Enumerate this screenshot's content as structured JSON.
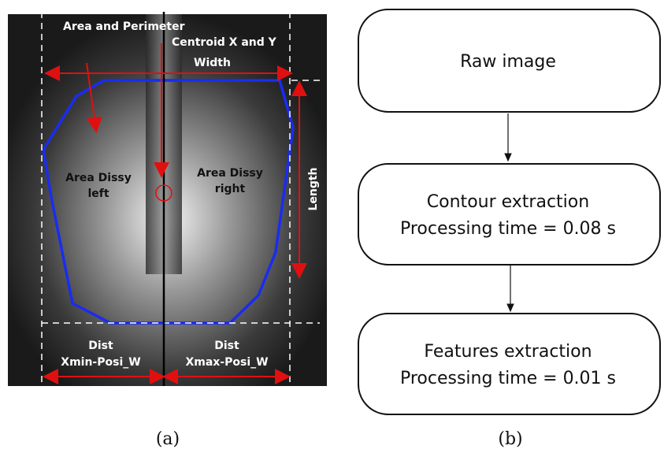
{
  "panel_a": {
    "annotations": {
      "area_perimeter": "Area and Perimeter",
      "centroid": "Centroid X and Y",
      "width": "Width",
      "length": "Length",
      "area_left": [
        "Area  Dissy",
        "left"
      ],
      "area_right": [
        "Area  Dissy",
        "right"
      ],
      "dist_left": [
        "Dist",
        "Xmin-Posi_W"
      ],
      "dist_right": [
        "Dist",
        "Xmax-Posi_W"
      ]
    },
    "caption": "(a)"
  },
  "panel_b": {
    "nodes": [
      {
        "lines": [
          "Raw image"
        ]
      },
      {
        "lines": [
          "Contour extraction",
          "Processing time = 0.08 s"
        ]
      },
      {
        "lines": [
          "Features extraction",
          "Processing time = 0.01 s"
        ]
      }
    ],
    "caption": "(b)"
  }
}
